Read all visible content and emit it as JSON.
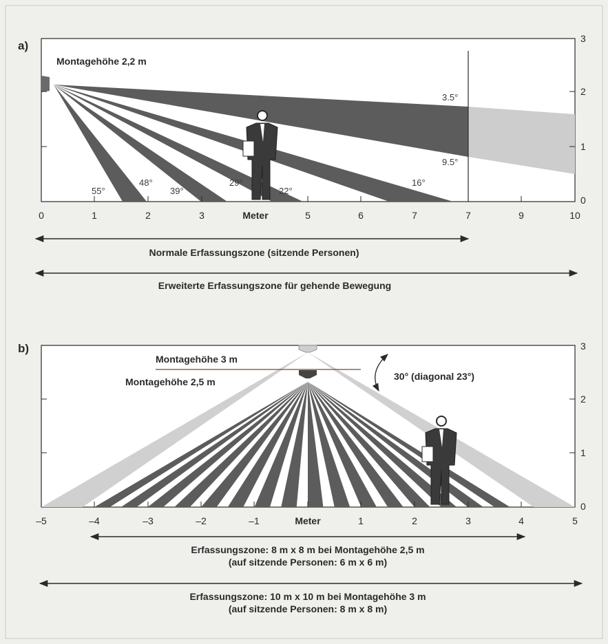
{
  "colors": {
    "background": "#efefec",
    "plot_bg": "#ffffff",
    "dark_beam": "#5c5c5c",
    "light_beam": "#cdcdcd",
    "ink": "#2a2a2a"
  },
  "panel_a": {
    "id": "a)",
    "mount_label": "Montagehöhe 2,2 m",
    "axis_label": "Meter",
    "x_ticks": [
      "0",
      "1",
      "2",
      "3",
      "5",
      "6",
      "7",
      "9",
      "10"
    ],
    "y_ticks": [
      "3",
      "2",
      "1",
      "0"
    ],
    "angles": [
      "3.5°",
      "9.5°",
      "16°",
      "22°",
      "29°",
      "39°",
      "48°",
      "55°"
    ],
    "normal_zone": "Normale Erfassungszone (sitzende Personen)",
    "extended_zone": "Erweiterte  Erfassungszone für gehende Bewegung"
  },
  "panel_b": {
    "id": "b)",
    "mount_3": "Montagehöhe 3 m",
    "mount_25": "Montagehöhe 2,5 m",
    "angle_note": "30° (diagonal 23°)",
    "axis_label": "Meter",
    "x_ticks": [
      "–5",
      "–4",
      "–3",
      "–2",
      "–1",
      "1",
      "2",
      "3",
      "4",
      "5"
    ],
    "y_ticks": [
      "3",
      "2",
      "1",
      "0"
    ],
    "zone_25_line1": "Erfassungszone: 8 m x 8 m bei Montagehöhe 2,5 m",
    "zone_25_line2": "(auf sitzende Personen: 6 m x 6 m)",
    "zone_3_line1": "Erfassungszone: 10 m x 10 m bei Montagehöhe 3 m",
    "zone_3_line2": "(auf sitzende Personen: 8 m x 8 m)"
  }
}
